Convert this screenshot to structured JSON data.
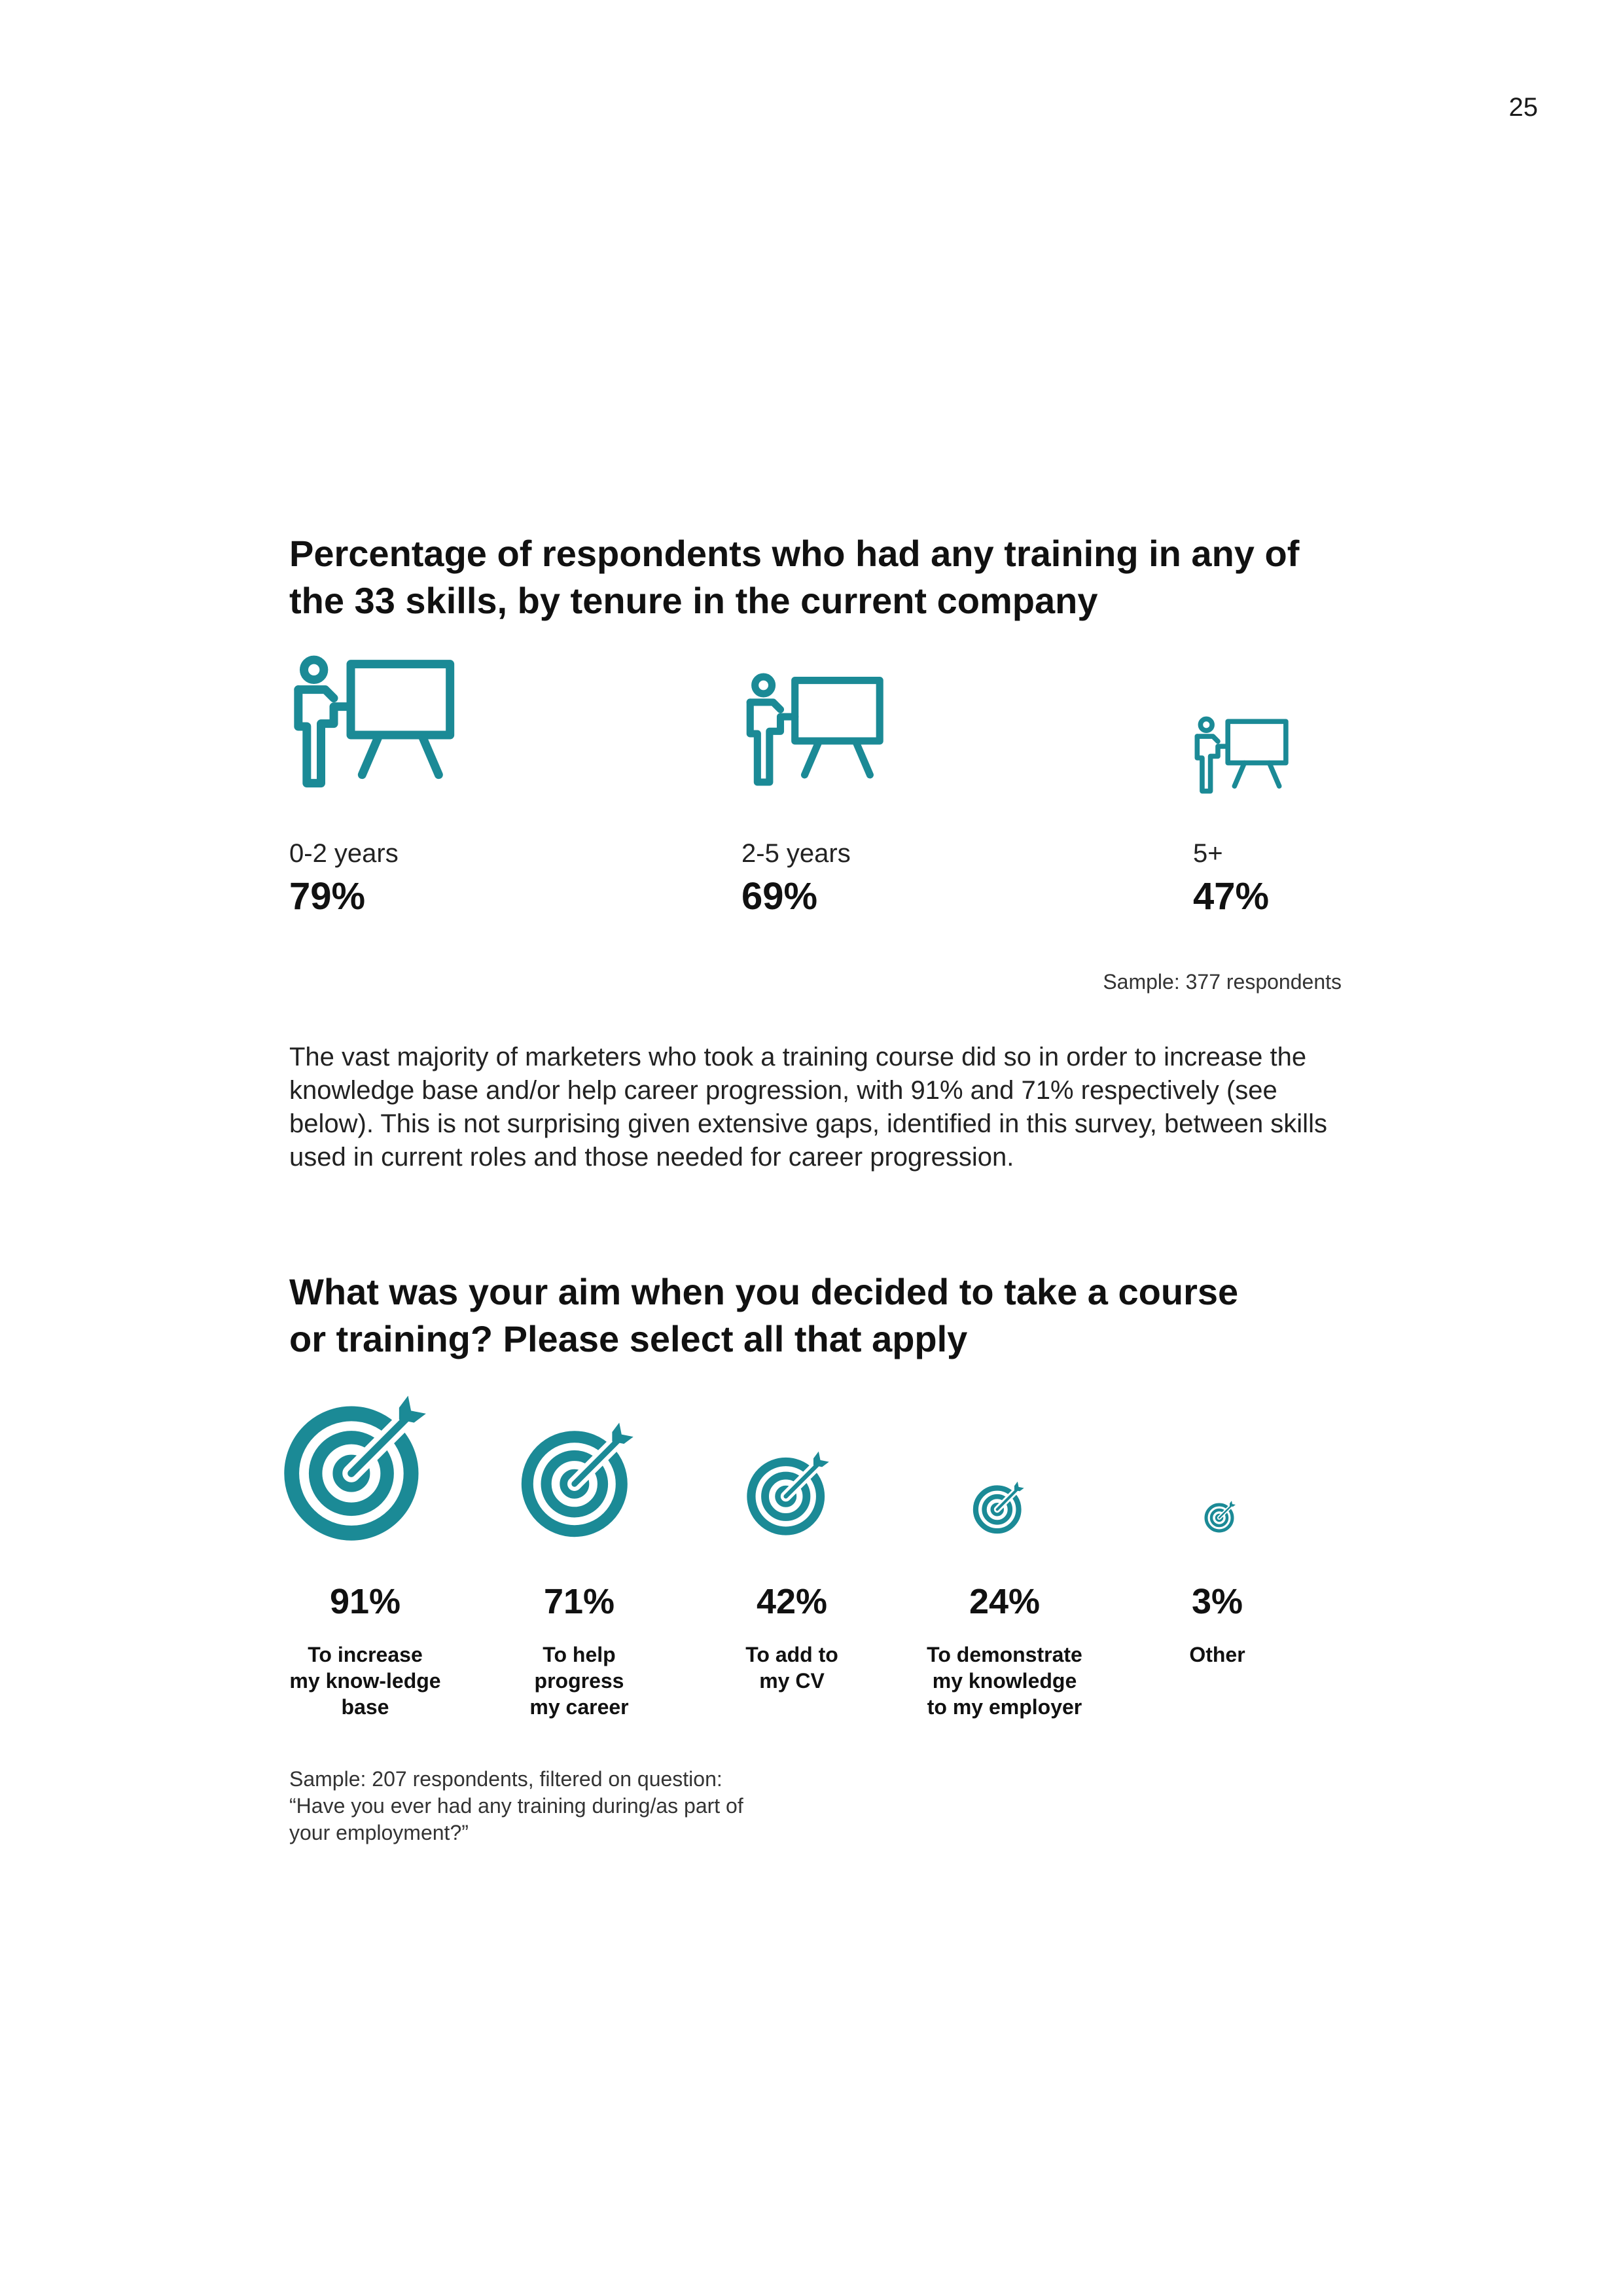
{
  "page_number": "25",
  "colors": {
    "accent": "#1b8a96",
    "text": "#111111"
  },
  "section1": {
    "title_line1": "Percentage of respondents who had any training in any of",
    "title_line2": "the 33 skills, by tenure in the current company",
    "items": [
      {
        "label": "0-2 years",
        "value": "79%",
        "icon": "presenter-board-icon"
      },
      {
        "label": "2-5 years",
        "value": "69%",
        "icon": "presenter-board-icon"
      },
      {
        "label": "5+",
        "value": "47%",
        "icon": "presenter-board-icon"
      }
    ],
    "sample": "Sample: 377 respondents"
  },
  "body_text": "The vast majority of marketers who took a training course did so in order to increase the knowledge base and/or help career progression, with 91% and 71% respectively (see below). This is not surprising given extensive gaps, identified in this survey, between skills used in current roles and those needed for career progression.",
  "section2": {
    "title_line1": "What was your aim when you decided to take a course",
    "title_line2": "or training? Please select all that apply",
    "items": [
      {
        "value": "91%",
        "label_lines": [
          "To increase",
          "my know-ledge",
          "base"
        ],
        "icon": "target-arrow-icon"
      },
      {
        "value": "71%",
        "label_lines": [
          "To help",
          "progress",
          "my career"
        ],
        "icon": "target-arrow-icon"
      },
      {
        "value": "42%",
        "label_lines": [
          "To add to",
          "my CV"
        ],
        "icon": "target-arrow-icon"
      },
      {
        "value": "24%",
        "label_lines": [
          "To demonstrate",
          "my knowledge",
          "to my employer"
        ],
        "icon": "target-arrow-icon"
      },
      {
        "value": "3%",
        "label_lines": [
          "Other"
        ],
        "icon": "target-arrow-icon"
      }
    ],
    "sample_lines": [
      "Sample: 207 respondents, filtered on question:",
      "“Have you ever had any training during/as part of",
      "your employment?”"
    ]
  }
}
